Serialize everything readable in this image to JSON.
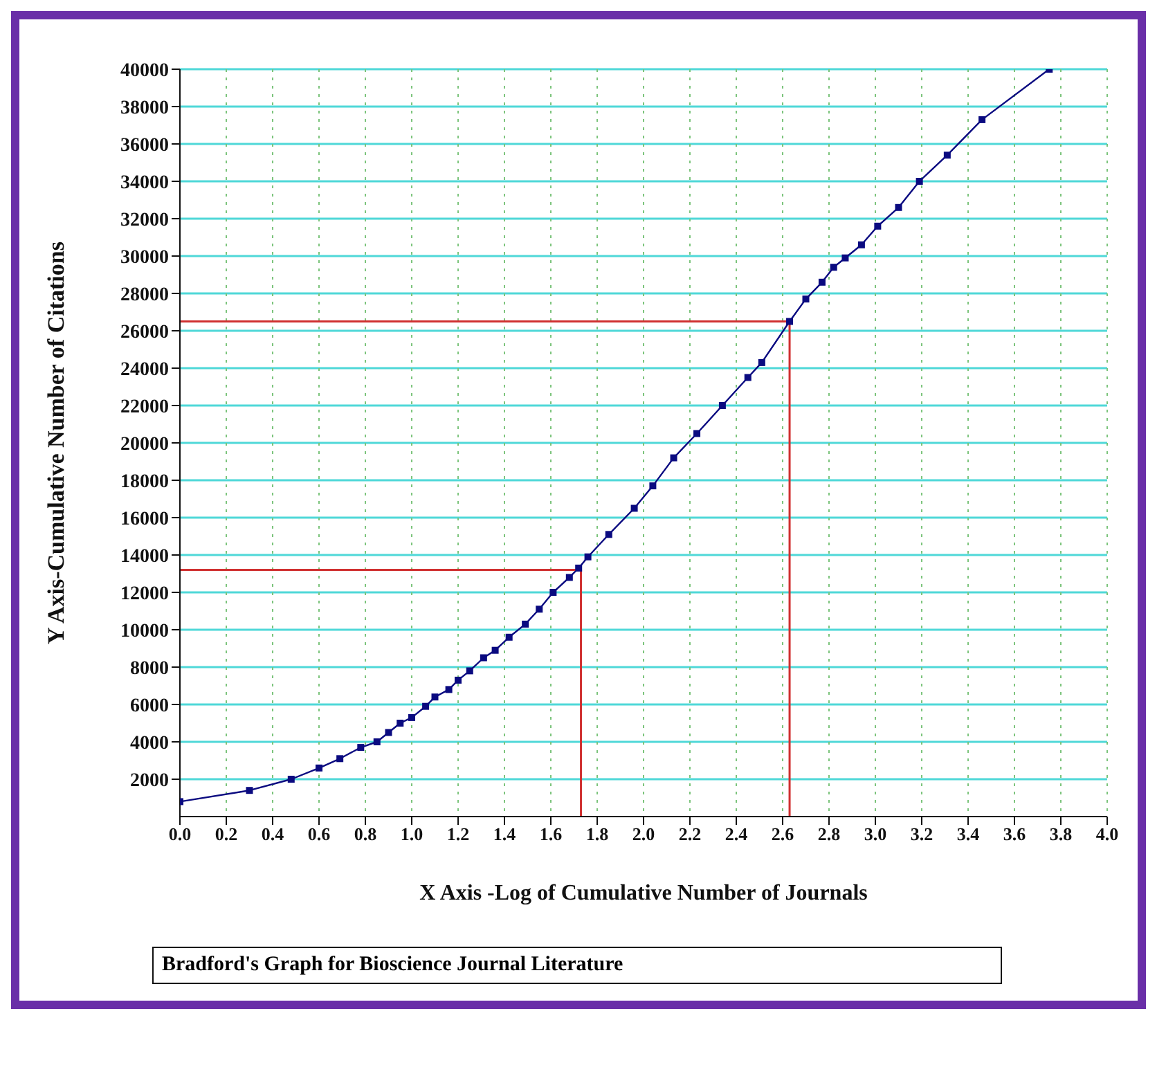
{
  "chart_data": {
    "type": "line",
    "title": "Bradford's Graph for Bioscience Journal Literature",
    "xlabel": "X Axis -Log of Cumulative Number of Journals",
    "ylabel": "Y Axis-Cumulative Number of Citations",
    "xlim": [
      0,
      4
    ],
    "ylim": [
      0,
      40000
    ],
    "xticks": [
      {
        "value": 0,
        "label": "0.0"
      },
      {
        "value": 0.2,
        "label": "0.2"
      },
      {
        "value": 0.4,
        "label": "0.4"
      },
      {
        "value": 0.6,
        "label": "0.6"
      },
      {
        "value": 0.8,
        "label": "0.8"
      },
      {
        "value": 1,
        "label": "1.0"
      },
      {
        "value": 1.2,
        "label": "1.2"
      },
      {
        "value": 1.4,
        "label": "1.4"
      },
      {
        "value": 1.6,
        "label": "1.6"
      },
      {
        "value": 1.8,
        "label": "1.8"
      },
      {
        "value": 2,
        "label": "2.0"
      },
      {
        "value": 2.2,
        "label": "2.2"
      },
      {
        "value": 2.4,
        "label": "2.4"
      },
      {
        "value": 2.6,
        "label": "2.6"
      },
      {
        "value": 2.8,
        "label": "2.8"
      },
      {
        "value": 3,
        "label": "3.0"
      },
      {
        "value": 3.2,
        "label": "3.2"
      },
      {
        "value": 3.4,
        "label": "3.4"
      },
      {
        "value": 3.6,
        "label": "3.6"
      },
      {
        "value": 3.8,
        "label": "3.8"
      },
      {
        "value": 4,
        "label": "4.0"
      }
    ],
    "yticks": [
      2000,
      4000,
      6000,
      8000,
      10000,
      12000,
      14000,
      16000,
      18000,
      20000,
      22000,
      24000,
      26000,
      28000,
      30000,
      32000,
      34000,
      36000,
      38000,
      40000
    ],
    "grid": true,
    "marker": "square",
    "line_style": "solid",
    "series": [
      {
        "color": "#0a0a80",
        "x": [
          0,
          0.3,
          0.48,
          0.6,
          0.69,
          0.78,
          0.85,
          0.9,
          0.95,
          1.0,
          1.06,
          1.1,
          1.16,
          1.2,
          1.25,
          1.31,
          1.36,
          1.42,
          1.49,
          1.55,
          1.61,
          1.68,
          1.72,
          1.76,
          1.85,
          1.96,
          2.04,
          2.13,
          2.23,
          2.34,
          2.45,
          2.51,
          2.63,
          2.7,
          2.77,
          2.82,
          2.87,
          2.94,
          3.01,
          3.1,
          3.19,
          3.31,
          3.46,
          3.75
        ],
        "values": [
          800,
          1400,
          2000,
          2600,
          3100,
          3700,
          4000,
          4500,
          5000,
          5300,
          5900,
          6400,
          6800,
          7300,
          7800,
          8500,
          8900,
          9600,
          10300,
          11100,
          12000,
          12800,
          13300,
          13900,
          15100,
          16500,
          17700,
          19200,
          20500,
          22000,
          23500,
          24300,
          26500,
          27700,
          28600,
          29400,
          29900,
          30600,
          31600,
          32600,
          34000,
          35400,
          37300,
          40000
        ]
      },
      {
        "color": "#d03030",
        "marker": "none",
        "x": [
          0,
          1.73,
          1.73
        ],
        "values": [
          13200,
          13200,
          0
        ]
      },
      {
        "color": "#d03030",
        "marker": "none",
        "x": [
          0,
          2.63,
          2.63
        ],
        "values": [
          26500,
          26500,
          0
        ]
      }
    ]
  }
}
